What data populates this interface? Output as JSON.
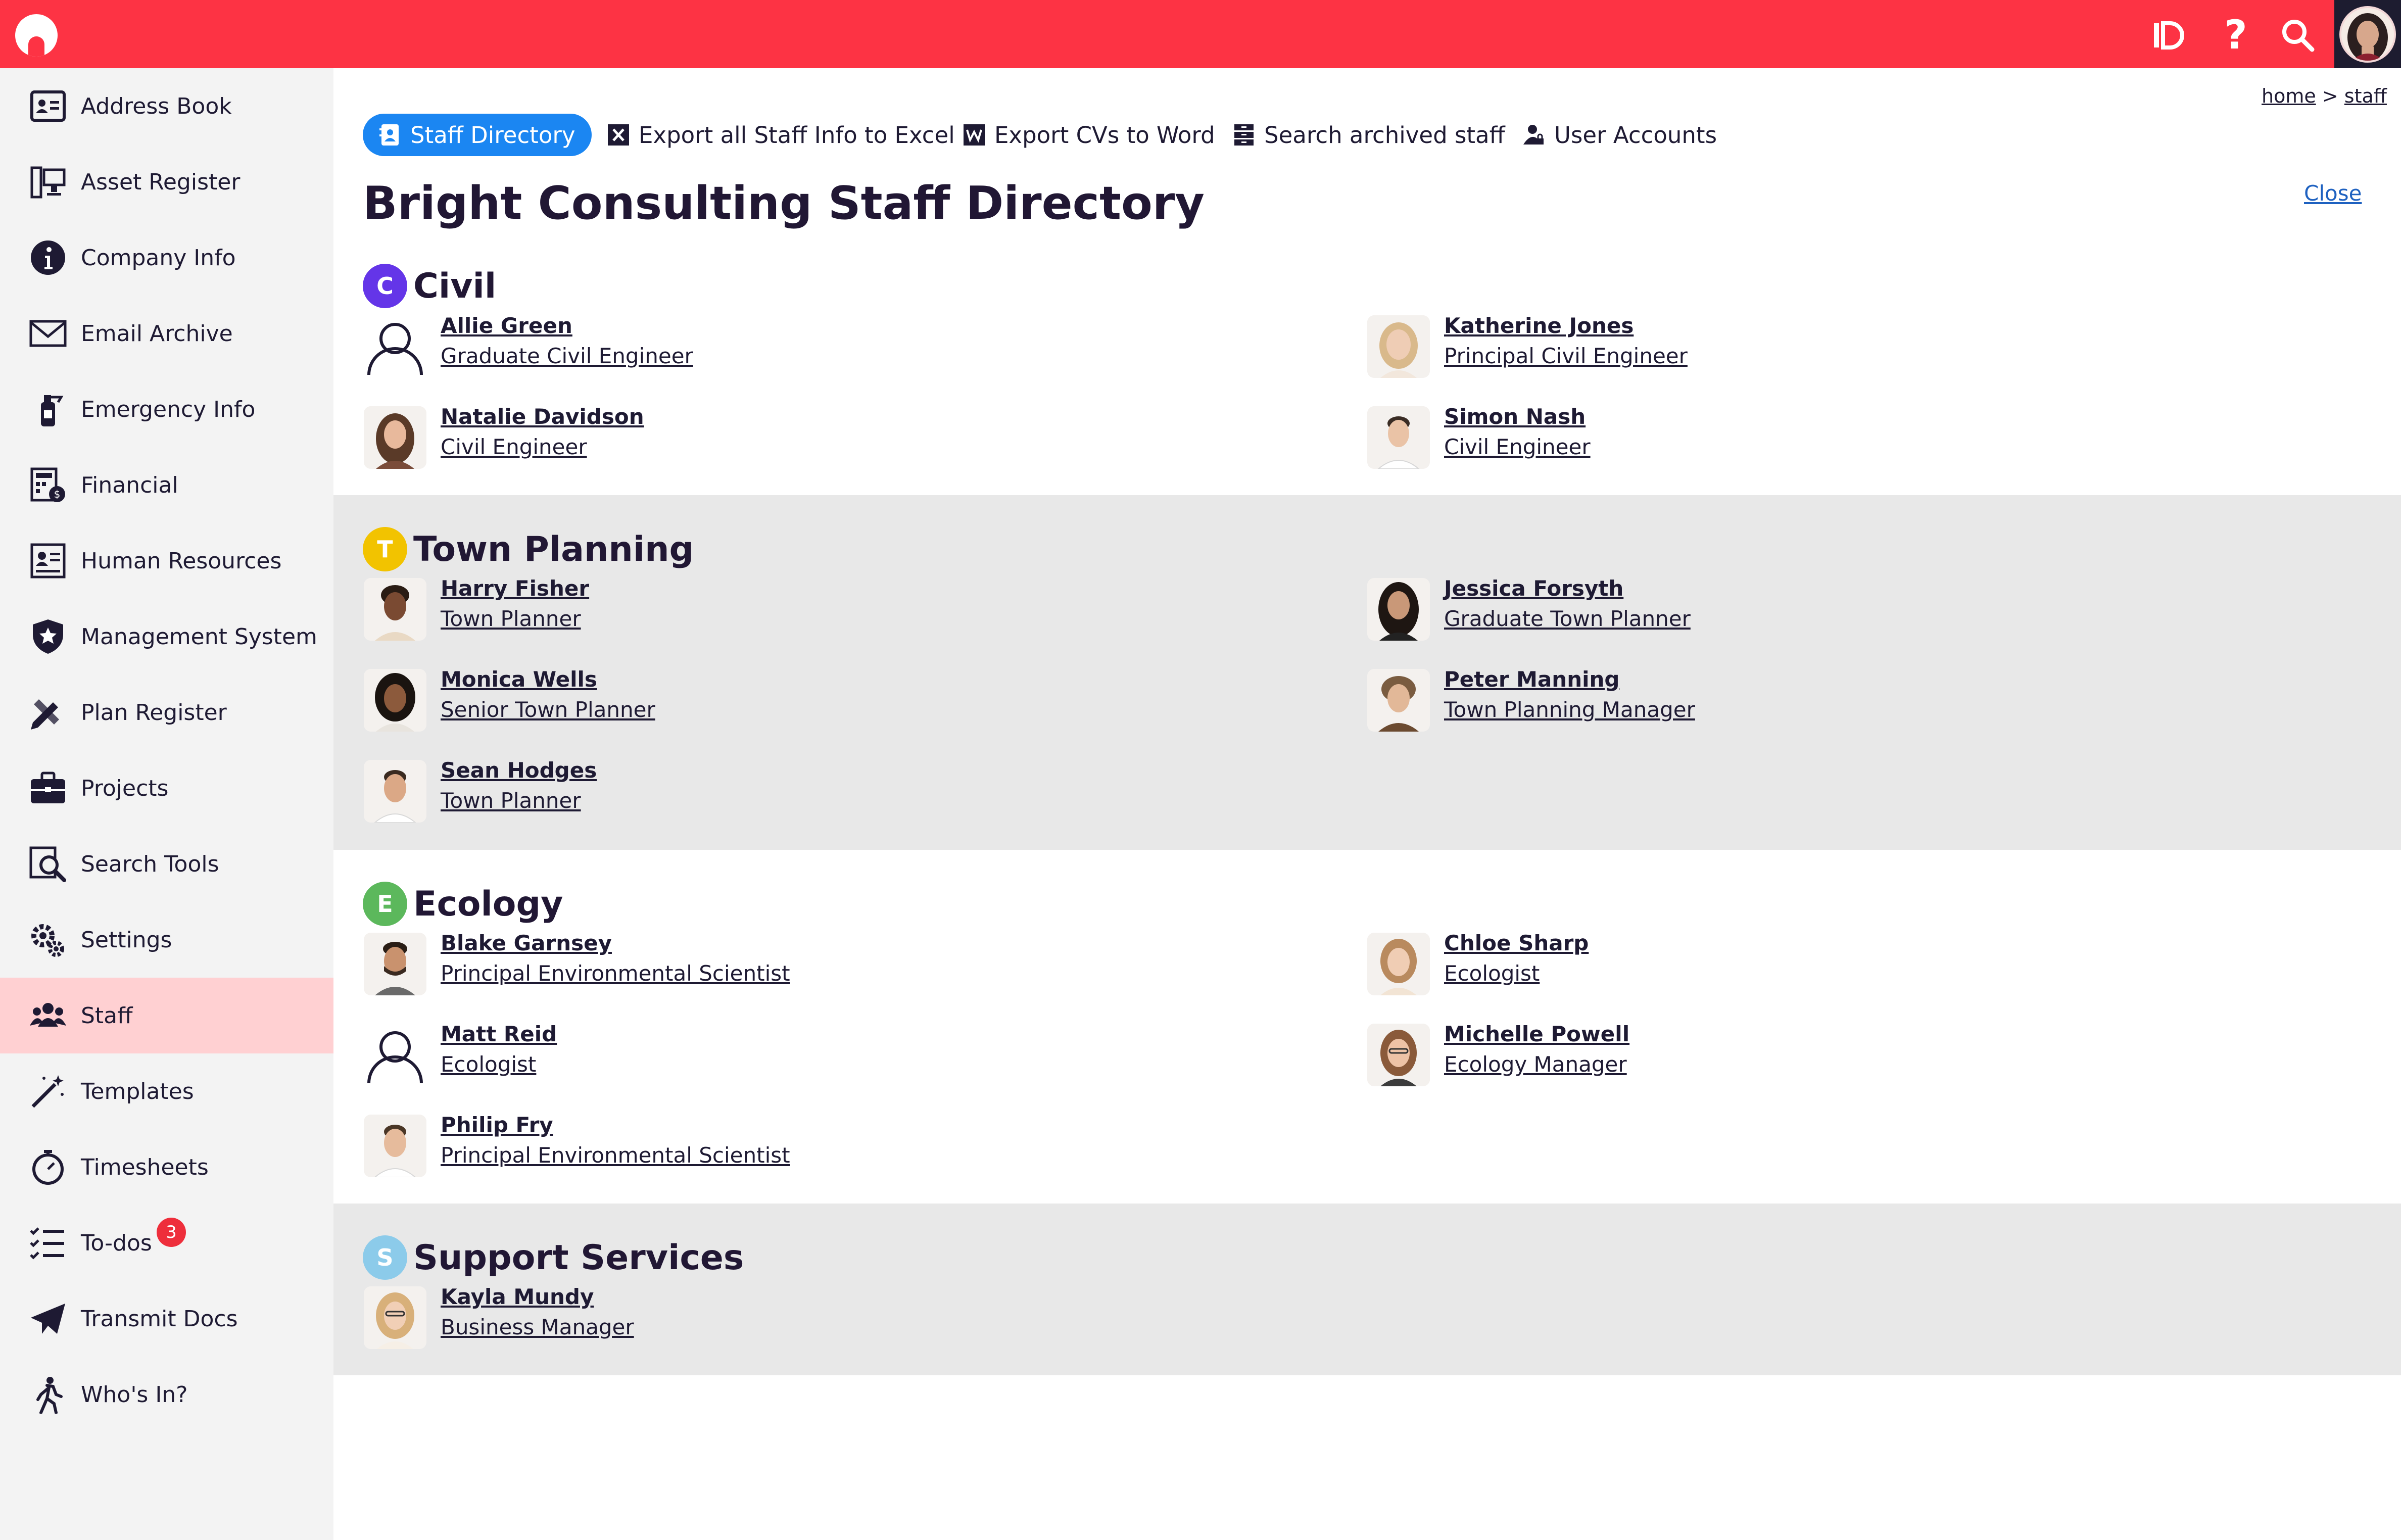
{
  "top_bar": {
    "brand_color": "#fd3344",
    "icons": [
      "logo-icon",
      "logout-icon",
      "help-icon",
      "search-icon",
      "user-avatar"
    ],
    "help_glyph": "?"
  },
  "sidebar": {
    "items": [
      {
        "label": "Address Book",
        "icon": "address-book-icon"
      },
      {
        "label": "Asset Register",
        "icon": "computer-icon"
      },
      {
        "label": "Company Info",
        "icon": "info-icon"
      },
      {
        "label": "Email Archive",
        "icon": "envelope-icon"
      },
      {
        "label": "Emergency Info",
        "icon": "fire-extinguisher-icon"
      },
      {
        "label": "Financial",
        "icon": "calculator-icon"
      },
      {
        "label": "Human Resources",
        "icon": "id-card-icon"
      },
      {
        "label": "Management System",
        "icon": "shield-star-icon"
      },
      {
        "label": "Plan Register",
        "icon": "pencil-ruler-icon"
      },
      {
        "label": "Projects",
        "icon": "briefcase-icon"
      },
      {
        "label": "Search Tools",
        "icon": "search-document-icon"
      },
      {
        "label": "Settings",
        "icon": "gears-icon"
      },
      {
        "label": "Staff",
        "icon": "people-icon",
        "active": true
      },
      {
        "label": "Templates",
        "icon": "magic-wand-icon"
      },
      {
        "label": "Timesheets",
        "icon": "stopwatch-icon"
      },
      {
        "label": "To-dos",
        "icon": "checklist-icon",
        "badge": "3"
      },
      {
        "label": "Transmit Docs",
        "icon": "paper-plane-icon"
      },
      {
        "label": "Who's In?",
        "icon": "walking-person-icon"
      }
    ]
  },
  "breadcrumb": {
    "home": "home",
    "separator": ">",
    "current": "staff"
  },
  "toolbar": {
    "staff_directory": "Staff Directory",
    "export_excel": "Export all Staff Info to Excel",
    "export_word": "Export CVs to Word",
    "search_archived": "Search archived staff",
    "user_accounts": "User Accounts",
    "active_color": "#1b86f2"
  },
  "page": {
    "title": "Bright Consulting Staff Directory",
    "close": "Close"
  },
  "sections": [
    {
      "letter": "C",
      "name": "Civil",
      "color": "#6435e8",
      "people": [
        {
          "name": "Allie Green",
          "role": "Graduate Civil Engineer",
          "photo": false
        },
        {
          "name": "Katherine Jones",
          "role": "Principal Civil Engineer",
          "photo": true
        },
        {
          "name": "Natalie Davidson",
          "role": "Civil Engineer",
          "photo": true
        },
        {
          "name": "Simon Nash",
          "role": "Civil Engineer",
          "photo": true
        }
      ]
    },
    {
      "letter": "T",
      "name": "Town Planning",
      "color": "#f2c300",
      "people": [
        {
          "name": "Harry Fisher",
          "role": "Town Planner",
          "photo": true
        },
        {
          "name": "Jessica Forsyth",
          "role": "Graduate Town Planner",
          "photo": true
        },
        {
          "name": "Monica Wells",
          "role": "Senior Town Planner",
          "photo": true
        },
        {
          "name": "Peter Manning",
          "role": "Town Planning Manager",
          "photo": true
        },
        {
          "name": "Sean Hodges",
          "role": "Town Planner",
          "photo": true
        }
      ]
    },
    {
      "letter": "E",
      "name": "Ecology",
      "color": "#5cb85c",
      "people": [
        {
          "name": "Blake Garnsey",
          "role": "Principal Environmental Scientist",
          "photo": true
        },
        {
          "name": "Chloe Sharp",
          "role": "Ecologist",
          "photo": true
        },
        {
          "name": "Matt Reid",
          "role": "Ecologist",
          "photo": false
        },
        {
          "name": "Michelle Powell",
          "role": "Ecology Manager",
          "photo": true
        },
        {
          "name": "Philip Fry",
          "role": "Principal Environmental Scientist",
          "photo": true
        }
      ]
    },
    {
      "letter": "S",
      "name": "Support Services",
      "color": "#8ccbea",
      "people": [
        {
          "name": "Kayla Mundy",
          "role": "Business Manager",
          "photo": true
        }
      ]
    }
  ]
}
